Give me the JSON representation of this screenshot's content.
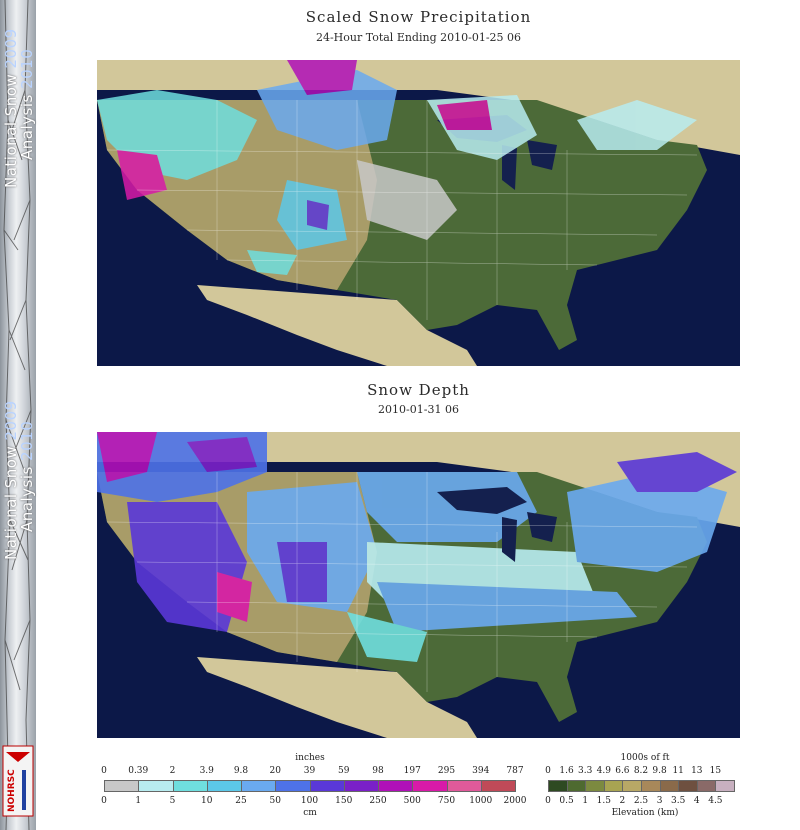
{
  "banner": {
    "line1_a": "National Snow ",
    "line1_b": "2009",
    "line2_a": "Analysis ",
    "line2_b": "2010"
  },
  "logo": {
    "text": "NOHRSC"
  },
  "panel_top": {
    "title": "Scaled Snow Precipitation",
    "subtitle": "24-Hour Total Ending 2010-01-25 06"
  },
  "panel_bottom": {
    "title": "Snow Depth",
    "subtitle": "2010-01-31 06"
  },
  "legend_snow": {
    "unit_top": "inches",
    "unit_bottom": "cm",
    "inches": [
      "0",
      "0.39",
      "2",
      "3.9",
      "9.8",
      "20",
      "39",
      "59",
      "98",
      "197",
      "295",
      "394",
      "787"
    ],
    "cm": [
      "0",
      "1",
      "5",
      "10",
      "25",
      "50",
      "100",
      "150",
      "250",
      "500",
      "750",
      "1000",
      "2000"
    ],
    "colors": [
      "#c8c8c8",
      "#b8ecf0",
      "#6fdede",
      "#5cc8e8",
      "#6aaaf0",
      "#4e72e8",
      "#5a38d8",
      "#7a20c8",
      "#b010b8",
      "#d81aa8",
      "#e05a9a",
      "#c04a58"
    ]
  },
  "legend_elev": {
    "unit_top": "1000s of ft",
    "unit_bottom": "Elevation (km)",
    "feet": [
      "0",
      "1.6",
      "3.3",
      "4.9",
      "6.6",
      "8.2",
      "9.8",
      "11",
      "13",
      "15"
    ],
    "km": [
      "0",
      "0.5",
      "1",
      "1.5",
      "2",
      "2.5",
      "3",
      "3.5",
      "4",
      "4.5"
    ],
    "colors": [
      "#2e4a22",
      "#4e6a30",
      "#7c8a40",
      "#a8a452",
      "#b8a866",
      "#a8885a",
      "#8a6a4a",
      "#6e5040",
      "#8a6a68",
      "#c8b0c0",
      "#e8e0e8"
    ]
  },
  "map_colors": {
    "ocean": "#0c1848",
    "land_low": "#4c6a38",
    "land_mid": "#a89c68",
    "land_foreign": "#d2c79a",
    "lake": "#14204e"
  }
}
